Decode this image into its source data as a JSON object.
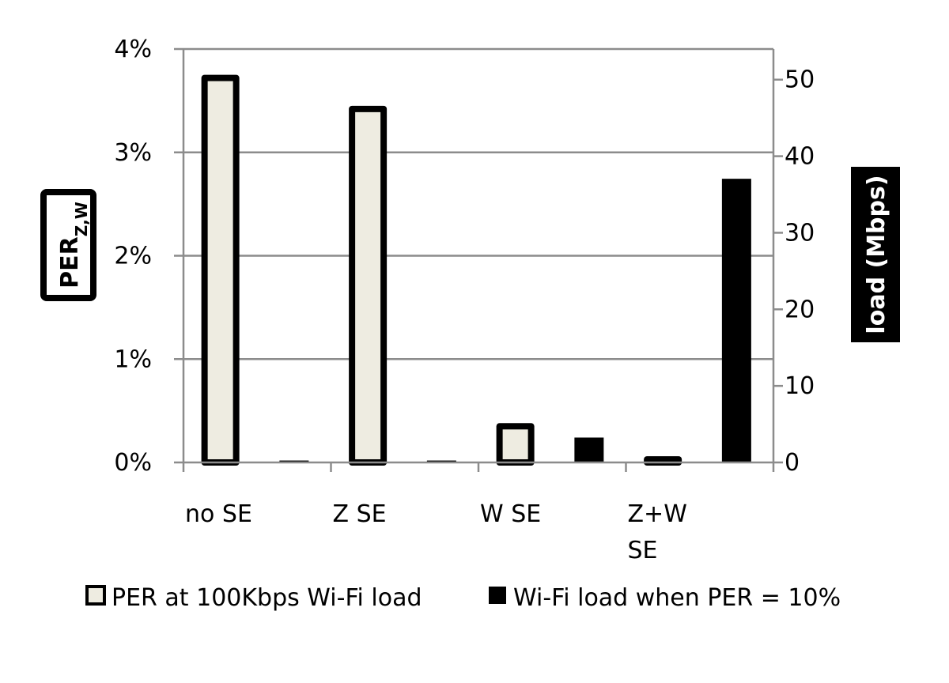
{
  "chart_data": {
    "type": "bar",
    "categories": [
      "no SE",
      "Z SE",
      "W SE",
      "Z+W SE"
    ],
    "category_lines": [
      [
        "no SE"
      ],
      [
        "Z SE"
      ],
      [
        "W SE"
      ],
      [
        "Z+W",
        "SE"
      ]
    ],
    "series": [
      {
        "name": "PER at 100Kbps Wi-Fi load",
        "axis": "left",
        "unit": "%",
        "values": [
          3.72,
          3.42,
          0.35,
          0.03
        ],
        "fill": "#eeece1",
        "stroke": "#000000"
      },
      {
        "name": "Wi-Fi load when PER = 10%",
        "axis": "right",
        "unit": "Mbps",
        "values": [
          0.2,
          0.2,
          3.2,
          37.0
        ],
        "fill": "#000000",
        "stroke": "#000000"
      }
    ],
    "y_left": {
      "label_main": "PER",
      "label_sub": "Z,W",
      "ticks": [
        "0%",
        "1%",
        "2%",
        "3%",
        "4%"
      ],
      "tick_values": [
        0,
        1,
        2,
        3,
        4
      ],
      "range": [
        0,
        4
      ]
    },
    "y_right": {
      "label": "load (Mbps)",
      "ticks": [
        "0",
        "10",
        "20",
        "30",
        "40",
        "50"
      ],
      "tick_values": [
        0,
        10,
        20,
        30,
        40,
        50
      ],
      "range": [
        0,
        54
      ]
    },
    "gridlines": true,
    "legend_position": "bottom"
  }
}
